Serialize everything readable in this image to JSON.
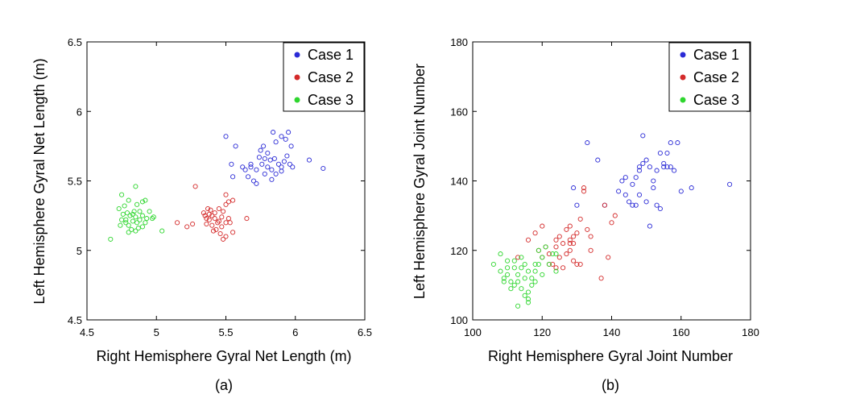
{
  "chart_data": [
    {
      "type": "scatter",
      "caption": "(a)",
      "xlabel": "Right Hemisphere Gyral Net Length (m)",
      "ylabel": "Left Hemisphere Gyral Net Length (m)",
      "xlim": [
        4.5,
        6.5
      ],
      "ylim": [
        4.5,
        6.5
      ],
      "xticks": [
        "4.5",
        "5",
        "5.5",
        "6",
        "6.5"
      ],
      "yticks": [
        "4.5",
        "5",
        "5.5",
        "6",
        "6.5"
      ],
      "xtick_values": [
        4.5,
        5,
        5.5,
        6,
        6.5
      ],
      "ytick_values": [
        4.5,
        5,
        5.5,
        6,
        6.5
      ],
      "grid": false,
      "legend_position": "top-right",
      "series": [
        {
          "name": "Case 1",
          "color": "#2b2bd6",
          "points": [
            [
              5.5,
              5.82
            ],
            [
              5.57,
              5.75
            ],
            [
              5.54,
              5.62
            ],
            [
              5.62,
              5.6
            ],
            [
              5.68,
              5.62
            ],
            [
              5.72,
              5.58
            ],
            [
              5.75,
              5.72
            ],
            [
              5.77,
              5.75
            ],
            [
              5.8,
              5.7
            ],
            [
              5.84,
              5.85
            ],
            [
              5.86,
              5.78
            ],
            [
              5.9,
              5.82
            ],
            [
              5.93,
              5.8
            ],
            [
              5.95,
              5.85
            ],
            [
              5.97,
              5.75
            ],
            [
              5.78,
              5.66
            ],
            [
              5.82,
              5.65
            ],
            [
              5.85,
              5.66
            ],
            [
              5.88,
              5.62
            ],
            [
              5.9,
              5.57
            ],
            [
              5.94,
              5.68
            ],
            [
              5.96,
              5.62
            ],
            [
              5.98,
              5.6
            ],
            [
              5.7,
              5.5
            ],
            [
              5.72,
              5.48
            ],
            [
              5.78,
              5.55
            ],
            [
              5.83,
              5.51
            ],
            [
              5.86,
              5.55
            ],
            [
              5.66,
              5.53
            ],
            [
              5.64,
              5.58
            ],
            [
              5.55,
              5.53
            ],
            [
              6.1,
              5.65
            ],
            [
              6.2,
              5.59
            ],
            [
              5.76,
              5.62
            ],
            [
              5.8,
              5.6
            ],
            [
              5.74,
              5.67
            ],
            [
              5.9,
              5.6
            ],
            [
              5.68,
              5.6
            ],
            [
              5.83,
              5.58
            ],
            [
              5.92,
              5.64
            ]
          ]
        },
        {
          "name": "Case 2",
          "color": "#d42a2a",
          "points": [
            [
              5.28,
              5.46
            ],
            [
              5.15,
              5.2
            ],
            [
              5.22,
              5.17
            ],
            [
              5.26,
              5.19
            ],
            [
              5.35,
              5.25
            ],
            [
              5.37,
              5.3
            ],
            [
              5.39,
              5.29
            ],
            [
              5.42,
              5.27
            ],
            [
              5.45,
              5.3
            ],
            [
              5.48,
              5.28
            ],
            [
              5.5,
              5.33
            ],
            [
              5.52,
              5.35
            ],
            [
              5.55,
              5.36
            ],
            [
              5.5,
              5.4
            ],
            [
              5.47,
              5.24
            ],
            [
              5.5,
              5.2
            ],
            [
              5.44,
              5.2
            ],
            [
              5.4,
              5.18
            ],
            [
              5.38,
              5.22
            ],
            [
              5.36,
              5.19
            ],
            [
              5.43,
              5.15
            ],
            [
              5.46,
              5.12
            ],
            [
              5.5,
              5.1
            ],
            [
              5.48,
              5.08
            ],
            [
              5.41,
              5.14
            ],
            [
              5.55,
              5.13
            ],
            [
              5.65,
              5.23
            ],
            [
              5.34,
              5.27
            ],
            [
              5.52,
              5.23
            ],
            [
              5.4,
              5.25
            ],
            [
              5.42,
              5.23
            ],
            [
              5.45,
              5.21
            ],
            [
              5.38,
              5.26
            ],
            [
              5.47,
              5.17
            ],
            [
              5.53,
              5.2
            ],
            [
              5.36,
              5.23
            ]
          ]
        },
        {
          "name": "Case 3",
          "color": "#2ed62e",
          "points": [
            [
              4.67,
              5.08
            ],
            [
              4.75,
              5.4
            ],
            [
              4.85,
              5.46
            ],
            [
              4.8,
              5.36
            ],
            [
              4.73,
              5.3
            ],
            [
              4.76,
              5.26
            ],
            [
              4.78,
              5.22
            ],
            [
              4.8,
              5.18
            ],
            [
              4.83,
              5.26
            ],
            [
              4.85,
              5.24
            ],
            [
              4.88,
              5.28
            ],
            [
              4.9,
              5.35
            ],
            [
              4.92,
              5.36
            ],
            [
              4.95,
              5.28
            ],
            [
              4.97,
              5.23
            ],
            [
              4.98,
              5.24
            ],
            [
              4.92,
              5.2
            ],
            [
              4.9,
              5.17
            ],
            [
              4.87,
              5.16
            ],
            [
              4.85,
              5.14
            ],
            [
              4.82,
              5.15
            ],
            [
              4.8,
              5.13
            ],
            [
              4.78,
              5.2
            ],
            [
              4.75,
              5.22
            ],
            [
              4.86,
              5.2
            ],
            [
              4.88,
              5.22
            ],
            [
              4.84,
              5.28
            ],
            [
              4.81,
              5.25
            ],
            [
              4.9,
              5.25
            ],
            [
              5.04,
              5.14
            ],
            [
              4.74,
              5.18
            ],
            [
              4.79,
              5.27
            ],
            [
              4.93,
              5.23
            ],
            [
              4.86,
              5.33
            ],
            [
              4.77,
              5.32
            ],
            [
              4.83,
              5.21
            ]
          ]
        }
      ]
    },
    {
      "type": "scatter",
      "caption": "(b)",
      "xlabel": "Right Hemisphere Gyral Joint Number",
      "ylabel": "Left Hemisphere Gyral Joint Number",
      "xlim": [
        100,
        180
      ],
      "ylim": [
        100,
        180
      ],
      "xticks": [
        "100",
        "120",
        "140",
        "160",
        "180"
      ],
      "yticks": [
        "100",
        "120",
        "140",
        "160",
        "180"
      ],
      "xtick_values": [
        100,
        120,
        140,
        160,
        180
      ],
      "ytick_values": [
        100,
        120,
        140,
        160,
        180
      ],
      "grid": false,
      "legend_position": "top-right",
      "series": [
        {
          "name": "Case 1",
          "color": "#2b2bd6",
          "points": [
            [
              133,
              151
            ],
            [
              136,
              146
            ],
            [
              129,
              138
            ],
            [
              130,
              133
            ],
            [
              138,
              133
            ],
            [
              142,
              137
            ],
            [
              143,
              140
            ],
            [
              144,
              141
            ],
            [
              146,
              139
            ],
            [
              147,
              141
            ],
            [
              148,
              144
            ],
            [
              148,
              143
            ],
            [
              149,
              153
            ],
            [
              149,
              145
            ],
            [
              150,
              146
            ],
            [
              151,
              144
            ],
            [
              152,
              140
            ],
            [
              152,
              138
            ],
            [
              153,
              143
            ],
            [
              154,
              148
            ],
            [
              155,
              144
            ],
            [
              155,
              145
            ],
            [
              156,
              148
            ],
            [
              156,
              144
            ],
            [
              157,
              151
            ],
            [
              157,
              144
            ],
            [
              158,
              143
            ],
            [
              159,
              151
            ],
            [
              160,
              137
            ],
            [
              163,
              138
            ],
            [
              174,
              139
            ],
            [
              145,
              134
            ],
            [
              146,
              133
            ],
            [
              148,
              136
            ],
            [
              150,
              134
            ],
            [
              151,
              127
            ],
            [
              153,
              133
            ],
            [
              154,
              132
            ],
            [
              147,
              133
            ],
            [
              144,
              136
            ]
          ]
        },
        {
          "name": "Case 2",
          "color": "#d42a2a",
          "points": [
            [
              113,
              118
            ],
            [
              116,
              123
            ],
            [
              118,
              125
            ],
            [
              120,
              127
            ],
            [
              122,
              119
            ],
            [
              124,
              121
            ],
            [
              124,
              123
            ],
            [
              125,
              124
            ],
            [
              126,
              122
            ],
            [
              127,
              126
            ],
            [
              128,
              123
            ],
            [
              128,
              127
            ],
            [
              129,
              122
            ],
            [
              129,
              124
            ],
            [
              130,
              125
            ],
            [
              131,
              129
            ],
            [
              132,
              138
            ],
            [
              132,
              137
            ],
            [
              133,
              126
            ],
            [
              134,
              124
            ],
            [
              134,
              120
            ],
            [
              138,
              133
            ],
            [
              139,
              118
            ],
            [
              140,
              128
            ],
            [
              141,
              130
            ],
            [
              137,
              112
            ],
            [
              123,
              116
            ],
            [
              125,
              118
            ],
            [
              127,
              119
            ],
            [
              129,
              117
            ],
            [
              130,
              116
            ],
            [
              131,
              116
            ],
            [
              126,
              115
            ],
            [
              124,
              115
            ],
            [
              122,
              116
            ],
            [
              120,
              118
            ],
            [
              128,
              120
            ],
            [
              121,
              121
            ],
            [
              119,
              120
            ],
            [
              128,
              122
            ]
          ]
        },
        {
          "name": "Case 3",
          "color": "#2ed62e",
          "points": [
            [
              106,
              116
            ],
            [
              108,
              119
            ],
            [
              108,
              114
            ],
            [
              109,
              112
            ],
            [
              110,
              115
            ],
            [
              110,
              113
            ],
            [
              111,
              111
            ],
            [
              112,
              115
            ],
            [
              112,
              117
            ],
            [
              113,
              113
            ],
            [
              113,
              111
            ],
            [
              114,
              118
            ],
            [
              114,
              115
            ],
            [
              115,
              112
            ],
            [
              115,
              116
            ],
            [
              116,
              114
            ],
            [
              116,
              108
            ],
            [
              116,
              106
            ],
            [
              116,
              105
            ],
            [
              117,
              112
            ],
            [
              117,
              110
            ],
            [
              118,
              116
            ],
            [
              118,
              114
            ],
            [
              119,
              116
            ],
            [
              119,
              120
            ],
            [
              120,
              113
            ],
            [
              120,
              118
            ],
            [
              121,
              121
            ],
            [
              122,
              116
            ],
            [
              123,
              119
            ],
            [
              124,
              114
            ],
            [
              124,
              119
            ],
            [
              109,
              111
            ],
            [
              111,
              109
            ],
            [
              113,
              104
            ],
            [
              115,
              107
            ],
            [
              110,
              117
            ],
            [
              112,
              110
            ],
            [
              114,
              109
            ],
            [
              118,
              111
            ]
          ]
        }
      ]
    }
  ]
}
